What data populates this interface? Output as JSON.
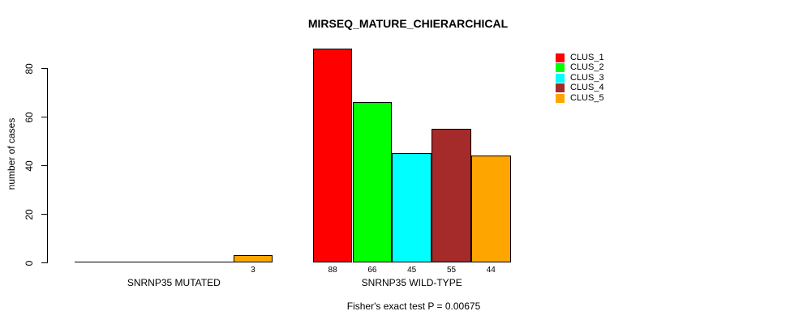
{
  "chart_data": {
    "type": "bar",
    "title": "MIRSEQ_MATURE_CHIERARCHICAL",
    "ylabel": "number of cases",
    "xlabel": "",
    "caption": "Fisher's exact test P = 0.00675",
    "ylim": [
      0,
      88
    ],
    "yticks": [
      0,
      20,
      40,
      60,
      80
    ],
    "ytick_labels": [
      "0",
      "20",
      "40",
      "60",
      "80"
    ],
    "grid": false,
    "legend_position": "top-right",
    "bar_border_color": "#000000",
    "background_color": "#ffffff",
    "text_color": "#000000",
    "categories": [
      "SNRNP35 MUTATED",
      "SNRNP35 WILD-TYPE"
    ],
    "series": [
      {
        "name": "CLUS_1",
        "color": "#ff0000",
        "values": [
          0,
          88
        ]
      },
      {
        "name": "CLUS_2",
        "color": "#00ff00",
        "values": [
          0,
          66
        ]
      },
      {
        "name": "CLUS_3",
        "color": "#00ffff",
        "values": [
          0,
          45
        ]
      },
      {
        "name": "CLUS_4",
        "color": "#a52a2a",
        "values": [
          0,
          55
        ]
      },
      {
        "name": "CLUS_5",
        "color": "#ffa500",
        "values": [
          3,
          44
        ]
      }
    ],
    "value_labels_shown": [
      "3",
      "88",
      "66",
      "45",
      "55",
      "44"
    ]
  }
}
